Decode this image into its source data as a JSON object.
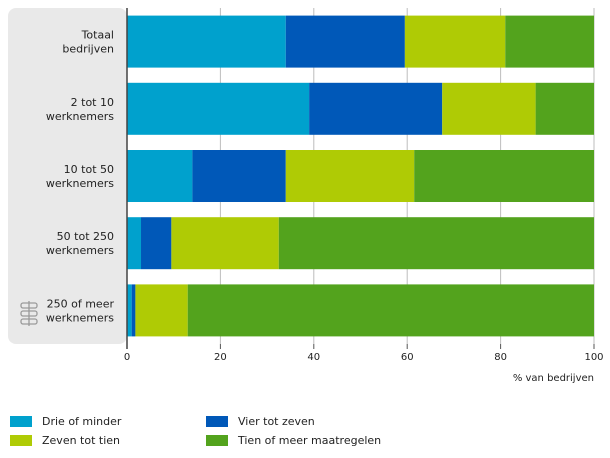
{
  "chart_data": {
    "type": "bar",
    "orientation": "horizontal",
    "stacked": true,
    "categories": [
      "Totaal bedrijven",
      "2 tot 10 werknemers",
      "10 tot 50 werknemers",
      "50 tot 250 werknemers",
      "250 of meer werknemers"
    ],
    "category_lines": [
      [
        "Totaal",
        "bedrijven"
      ],
      [
        "2 tot 10",
        "werknemers"
      ],
      [
        "10 tot 50",
        "werknemers"
      ],
      [
        "50 tot 250",
        "werknemers"
      ],
      [
        "250 of meer",
        "werknemers"
      ]
    ],
    "series": [
      {
        "name": "Drie of minder",
        "color": "#00a1cd",
        "values": [
          34,
          39,
          14,
          3,
          1
        ]
      },
      {
        "name": "Vier tot zeven",
        "color": "#0058b8",
        "values": [
          25.5,
          28.5,
          20,
          6.5,
          0.8
        ]
      },
      {
        "name": "Zeven tot tien",
        "color": "#afcb05",
        "values": [
          21.5,
          20,
          27.5,
          23,
          11.2
        ]
      },
      {
        "name": "Tien of meer maatregelen",
        "color": "#53a31d",
        "values": [
          19,
          12.5,
          38.5,
          67.5,
          87
        ]
      }
    ],
    "xlim": [
      0,
      100
    ],
    "xticks": [
      0,
      20,
      40,
      60,
      80,
      100
    ],
    "xtick_labels": [
      "0",
      "20",
      "40",
      "60",
      "80",
      "100"
    ],
    "xlabel": "% van bedrijven",
    "title": "",
    "ylabel": "",
    "grid": true,
    "legend_position": "bottom",
    "label_panel_color": "#e9e9e9",
    "grid_color": "#bdbdbd",
    "watermark": "cbs-logo"
  }
}
